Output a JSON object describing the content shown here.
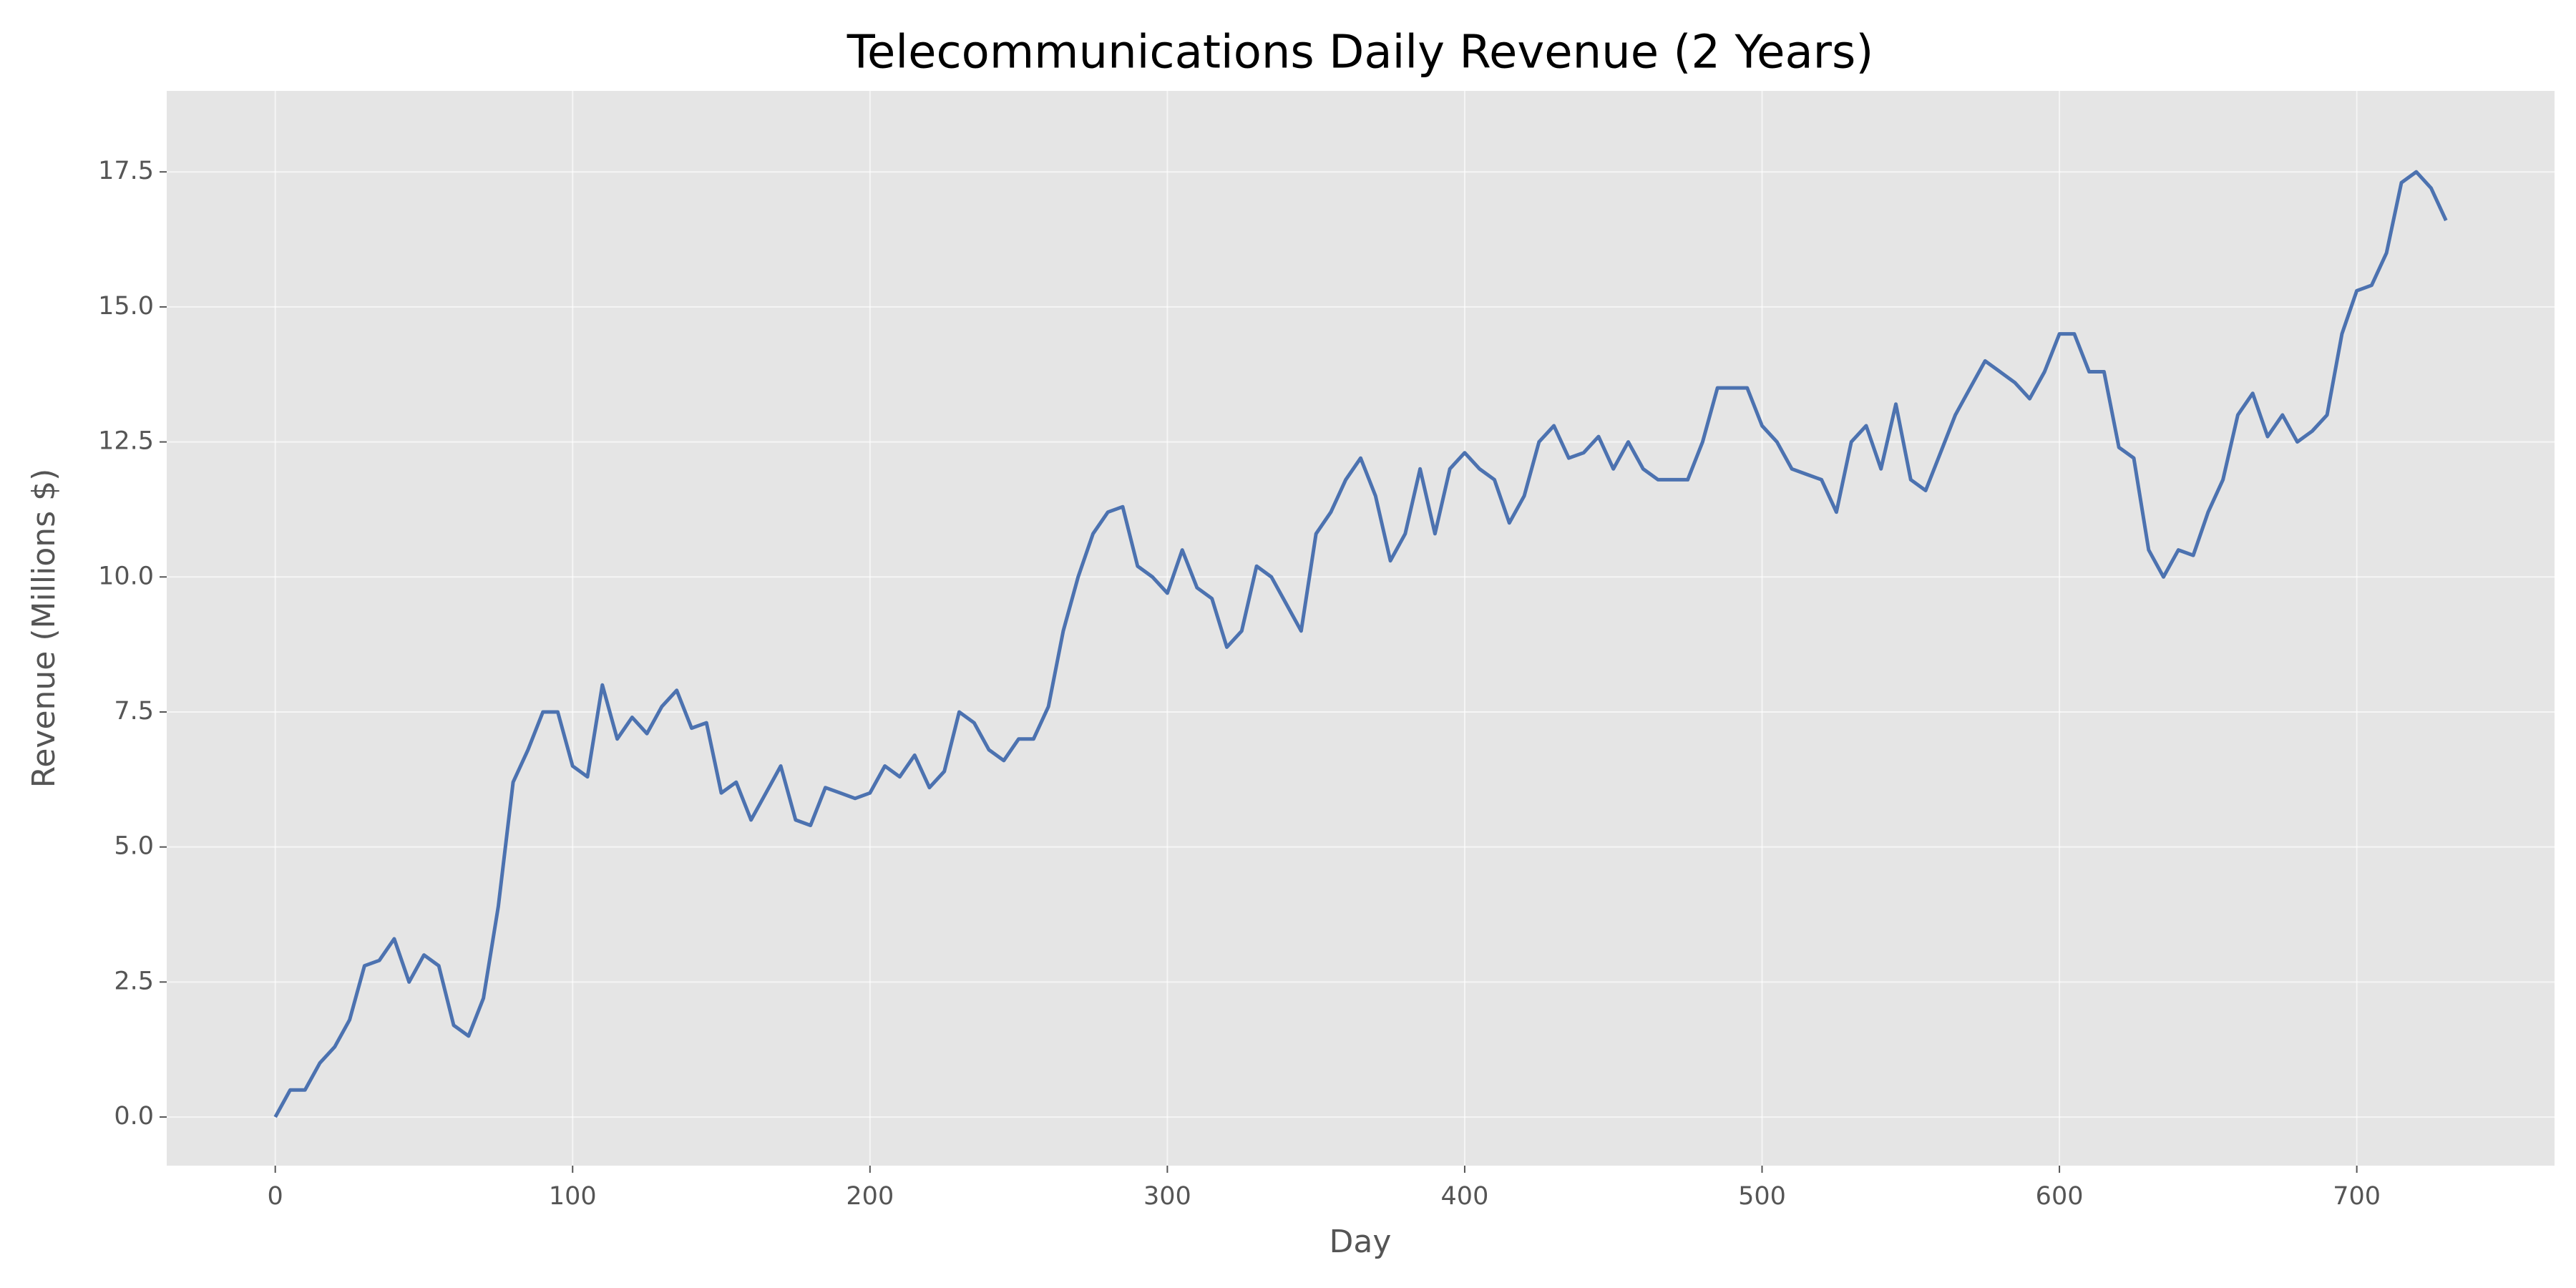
{
  "chart_data": {
    "type": "line",
    "title": "Telecommunications Daily Revenue (2 Years)",
    "xlabel": "Day",
    "ylabel": "Revenue (Millions $)",
    "x": [
      0,
      5,
      10,
      15,
      20,
      25,
      30,
      35,
      40,
      45,
      50,
      55,
      60,
      65,
      70,
      75,
      80,
      85,
      90,
      95,
      100,
      105,
      110,
      115,
      120,
      125,
      130,
      135,
      140,
      145,
      150,
      155,
      160,
      165,
      170,
      175,
      180,
      185,
      190,
      195,
      200,
      205,
      210,
      215,
      220,
      225,
      230,
      235,
      240,
      245,
      250,
      255,
      260,
      265,
      270,
      275,
      280,
      285,
      290,
      295,
      300,
      305,
      310,
      315,
      320,
      325,
      330,
      335,
      340,
      345,
      350,
      355,
      360,
      365,
      370,
      375,
      380,
      385,
      390,
      395,
      400,
      405,
      410,
      415,
      420,
      425,
      430,
      435,
      440,
      445,
      450,
      455,
      460,
      465,
      470,
      475,
      480,
      485,
      490,
      495,
      500,
      505,
      510,
      515,
      520,
      525,
      530,
      535,
      540,
      545,
      550,
      555,
      560,
      565,
      570,
      575,
      580,
      585,
      590,
      595,
      600,
      605,
      610,
      615,
      620,
      625,
      630,
      635,
      640,
      645,
      650,
      655,
      660,
      665,
      670,
      675,
      680,
      685,
      690,
      695,
      700,
      705,
      710,
      715,
      720,
      725,
      730
    ],
    "series": [
      {
        "color": "#4c72b0",
        "values": [
          0,
          0.5,
          0.5,
          1.0,
          1.3,
          1.8,
          2.8,
          2.9,
          3.3,
          2.5,
          3.0,
          2.8,
          1.7,
          1.5,
          2.2,
          3.9,
          6.2,
          6.8,
          7.5,
          7.5,
          6.5,
          6.3,
          8.0,
          7.0,
          7.4,
          7.1,
          7.6,
          7.9,
          7.2,
          7.3,
          6.0,
          6.2,
          5.5,
          6.0,
          6.5,
          5.5,
          5.4,
          6.1,
          6.0,
          5.9,
          6.0,
          6.5,
          6.3,
          6.7,
          6.1,
          6.4,
          7.5,
          7.3,
          6.8,
          6.6,
          7.0,
          7.0,
          7.6,
          9.0,
          10.0,
          10.8,
          11.2,
          11.3,
          10.2,
          10.0,
          9.7,
          10.5,
          9.8,
          9.6,
          8.7,
          9.0,
          10.2,
          10.0,
          9.5,
          9.0,
          10.8,
          11.2,
          11.8,
          12.2,
          11.5,
          10.3,
          10.8,
          12.0,
          10.8,
          12.0,
          12.3,
          12.0,
          11.8,
          11.0,
          11.5,
          12.5,
          12.8,
          12.2,
          12.3,
          12.6,
          12.0,
          12.5,
          12.0,
          11.8,
          11.8,
          11.8,
          12.5,
          13.5,
          13.5,
          13.5,
          12.8,
          12.5,
          12.0,
          11.9,
          11.8,
          11.2,
          12.5,
          12.8,
          12.0,
          13.2,
          11.8,
          11.6,
          12.3,
          13.0,
          13.5,
          14.0,
          13.8,
          13.6,
          13.3,
          13.8,
          14.5,
          14.5,
          13.8,
          13.8,
          12.4,
          12.2,
          10.5,
          10.0,
          10.5,
          10.4,
          11.2,
          11.8,
          13.0,
          13.4,
          12.6,
          13.0,
          12.5,
          12.7,
          13.0,
          14.5,
          15.3,
          15.4,
          16.0,
          17.3,
          17.5,
          17.2,
          16.6
        ]
      }
    ],
    "xlim": [
      -36.5,
      766.5
    ],
    "xticks": [
      0,
      100,
      200,
      300,
      400,
      500,
      600,
      700
    ],
    "ylim": [
      -0.9,
      19.0
    ],
    "yticks": [
      {
        "value": 0,
        "label": "0.0"
      },
      2.5,
      {
        "value": 5,
        "label": "5.0"
      },
      7.5,
      {
        "value": 10,
        "label": "10.0"
      },
      12.5,
      {
        "value": 15,
        "label": "15.0"
      },
      17.5
    ],
    "grid": true
  }
}
